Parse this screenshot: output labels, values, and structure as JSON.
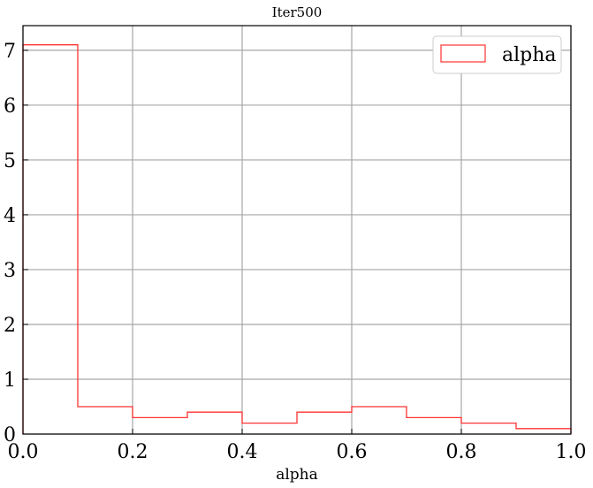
{
  "chart_data": {
    "type": "bar",
    "style": "step-histogram",
    "title": "Iter500",
    "xlabel": "alpha",
    "ylabel": "",
    "xlim": [
      0.0,
      1.0
    ],
    "ylim": [
      0,
      7.45
    ],
    "grid": true,
    "legend_position": "top-right",
    "bin_edges": [
      0.0,
      0.1,
      0.2,
      0.3,
      0.4,
      0.5,
      0.6,
      0.7,
      0.8,
      0.9,
      1.0
    ],
    "series": [
      {
        "name": "alpha",
        "color": "#ff3333",
        "values": [
          7.1,
          0.5,
          0.3,
          0.4,
          0.2,
          0.4,
          0.5,
          0.3,
          0.2,
          0.1
        ]
      }
    ],
    "x_ticks": [
      {
        "value": 0.0,
        "label": "0.0"
      },
      {
        "value": 0.2,
        "label": "0.2"
      },
      {
        "value": 0.4,
        "label": "0.4"
      },
      {
        "value": 0.6,
        "label": "0.6"
      },
      {
        "value": 0.8,
        "label": "0.8"
      },
      {
        "value": 1.0,
        "label": "1.0"
      }
    ],
    "y_ticks": [
      {
        "value": 0,
        "label": "0"
      },
      {
        "value": 1,
        "label": "1"
      },
      {
        "value": 2,
        "label": "2"
      },
      {
        "value": 3,
        "label": "3"
      },
      {
        "value": 4,
        "label": "4"
      },
      {
        "value": 5,
        "label": "5"
      },
      {
        "value": 6,
        "label": "6"
      },
      {
        "value": 7,
        "label": "7"
      }
    ]
  }
}
